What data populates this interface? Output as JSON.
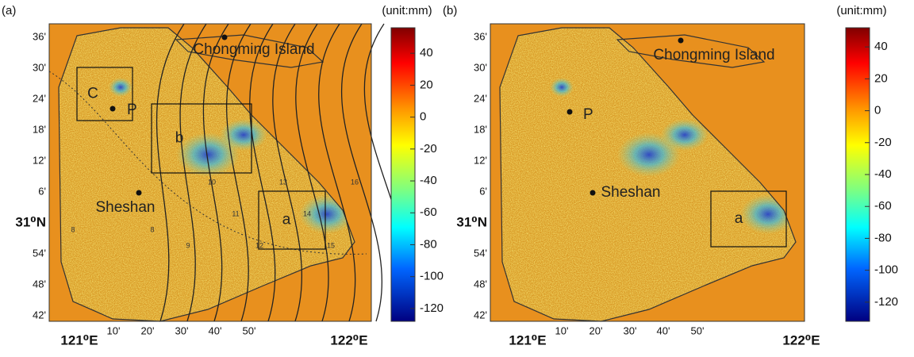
{
  "panels": [
    {
      "label": "(a)",
      "unit": "(unit:mm)",
      "yticks": [
        "36'",
        "30'",
        "24'",
        "18'",
        "12'",
        "6'",
        "31⁰N",
        "54'",
        "48'",
        "42'"
      ],
      "xticks": [
        "121⁰E",
        "10'",
        "20'",
        "30'",
        "40'",
        "50'",
        "122⁰E"
      ],
      "places": [
        "Chongming Island",
        "Sheshan",
        "P"
      ],
      "boxes": [
        "C",
        "b",
        "a"
      ],
      "contour_labels": [
        "8",
        "8",
        "9",
        "10",
        "11",
        "12",
        "13",
        "14",
        "15",
        "16"
      ],
      "colorbar": {
        "lim": [
          -128,
          56
        ],
        "ticks": [
          40,
          20,
          0,
          -20,
          -40,
          -60,
          -80,
          -100,
          -120
        ]
      }
    },
    {
      "label": "(b)",
      "unit": "(unit:mm)",
      "yticks": [
        "36'",
        "30'",
        "24'",
        "18'",
        "12'",
        "6'",
        "31⁰N",
        "54'",
        "48'",
        "42'"
      ],
      "xticks": [
        "121⁰E",
        "10'",
        "20'",
        "30'",
        "40'",
        "50'",
        "122⁰E"
      ],
      "places": [
        "Chongming Island",
        "Sheshan",
        "P"
      ],
      "boxes": [
        "a"
      ],
      "colorbar": {
        "lim": [
          -132,
          52
        ],
        "ticks": [
          40,
          20,
          0,
          -20,
          -40,
          -60,
          -80,
          -100,
          -120
        ]
      }
    }
  ]
}
